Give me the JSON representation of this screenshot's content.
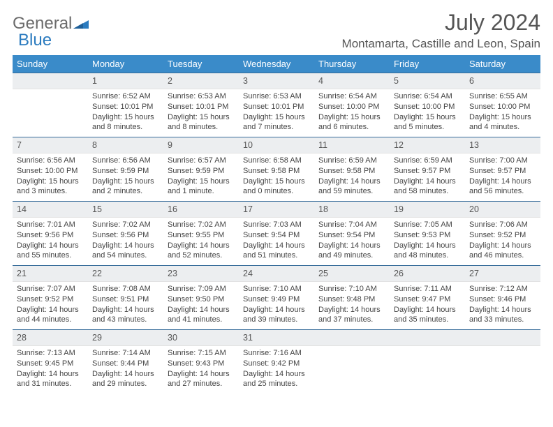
{
  "logo": {
    "text1": "General",
    "text2": "Blue"
  },
  "title": "July 2024",
  "location": "Montamarta, Castille and Leon, Spain",
  "weekdays": [
    "Sunday",
    "Monday",
    "Tuesday",
    "Wednesday",
    "Thursday",
    "Friday",
    "Saturday"
  ],
  "colors": {
    "header_bg": "#3a8bc9",
    "header_border": "#356b99",
    "daynum_bg": "#eceef0",
    "logo_gray": "#6b6b6b",
    "logo_blue": "#2b7bbf"
  },
  "typography": {
    "title_fontsize": 32,
    "location_fontsize": 17,
    "weekday_fontsize": 13,
    "cell_fontsize": 11
  },
  "first_weekday_index": 1,
  "days": [
    {
      "n": 1,
      "sunrise": "6:52 AM",
      "sunset": "10:01 PM",
      "daylight": "15 hours and 8 minutes."
    },
    {
      "n": 2,
      "sunrise": "6:53 AM",
      "sunset": "10:01 PM",
      "daylight": "15 hours and 8 minutes."
    },
    {
      "n": 3,
      "sunrise": "6:53 AM",
      "sunset": "10:01 PM",
      "daylight": "15 hours and 7 minutes."
    },
    {
      "n": 4,
      "sunrise": "6:54 AM",
      "sunset": "10:00 PM",
      "daylight": "15 hours and 6 minutes."
    },
    {
      "n": 5,
      "sunrise": "6:54 AM",
      "sunset": "10:00 PM",
      "daylight": "15 hours and 5 minutes."
    },
    {
      "n": 6,
      "sunrise": "6:55 AM",
      "sunset": "10:00 PM",
      "daylight": "15 hours and 4 minutes."
    },
    {
      "n": 7,
      "sunrise": "6:56 AM",
      "sunset": "10:00 PM",
      "daylight": "15 hours and 3 minutes."
    },
    {
      "n": 8,
      "sunrise": "6:56 AM",
      "sunset": "9:59 PM",
      "daylight": "15 hours and 2 minutes."
    },
    {
      "n": 9,
      "sunrise": "6:57 AM",
      "sunset": "9:59 PM",
      "daylight": "15 hours and 1 minute."
    },
    {
      "n": 10,
      "sunrise": "6:58 AM",
      "sunset": "9:58 PM",
      "daylight": "15 hours and 0 minutes."
    },
    {
      "n": 11,
      "sunrise": "6:59 AM",
      "sunset": "9:58 PM",
      "daylight": "14 hours and 59 minutes."
    },
    {
      "n": 12,
      "sunrise": "6:59 AM",
      "sunset": "9:57 PM",
      "daylight": "14 hours and 58 minutes."
    },
    {
      "n": 13,
      "sunrise": "7:00 AM",
      "sunset": "9:57 PM",
      "daylight": "14 hours and 56 minutes."
    },
    {
      "n": 14,
      "sunrise": "7:01 AM",
      "sunset": "9:56 PM",
      "daylight": "14 hours and 55 minutes."
    },
    {
      "n": 15,
      "sunrise": "7:02 AM",
      "sunset": "9:56 PM",
      "daylight": "14 hours and 54 minutes."
    },
    {
      "n": 16,
      "sunrise": "7:02 AM",
      "sunset": "9:55 PM",
      "daylight": "14 hours and 52 minutes."
    },
    {
      "n": 17,
      "sunrise": "7:03 AM",
      "sunset": "9:54 PM",
      "daylight": "14 hours and 51 minutes."
    },
    {
      "n": 18,
      "sunrise": "7:04 AM",
      "sunset": "9:54 PM",
      "daylight": "14 hours and 49 minutes."
    },
    {
      "n": 19,
      "sunrise": "7:05 AM",
      "sunset": "9:53 PM",
      "daylight": "14 hours and 48 minutes."
    },
    {
      "n": 20,
      "sunrise": "7:06 AM",
      "sunset": "9:52 PM",
      "daylight": "14 hours and 46 minutes."
    },
    {
      "n": 21,
      "sunrise": "7:07 AM",
      "sunset": "9:52 PM",
      "daylight": "14 hours and 44 minutes."
    },
    {
      "n": 22,
      "sunrise": "7:08 AM",
      "sunset": "9:51 PM",
      "daylight": "14 hours and 43 minutes."
    },
    {
      "n": 23,
      "sunrise": "7:09 AM",
      "sunset": "9:50 PM",
      "daylight": "14 hours and 41 minutes."
    },
    {
      "n": 24,
      "sunrise": "7:10 AM",
      "sunset": "9:49 PM",
      "daylight": "14 hours and 39 minutes."
    },
    {
      "n": 25,
      "sunrise": "7:10 AM",
      "sunset": "9:48 PM",
      "daylight": "14 hours and 37 minutes."
    },
    {
      "n": 26,
      "sunrise": "7:11 AM",
      "sunset": "9:47 PM",
      "daylight": "14 hours and 35 minutes."
    },
    {
      "n": 27,
      "sunrise": "7:12 AM",
      "sunset": "9:46 PM",
      "daylight": "14 hours and 33 minutes."
    },
    {
      "n": 28,
      "sunrise": "7:13 AM",
      "sunset": "9:45 PM",
      "daylight": "14 hours and 31 minutes."
    },
    {
      "n": 29,
      "sunrise": "7:14 AM",
      "sunset": "9:44 PM",
      "daylight": "14 hours and 29 minutes."
    },
    {
      "n": 30,
      "sunrise": "7:15 AM",
      "sunset": "9:43 PM",
      "daylight": "14 hours and 27 minutes."
    },
    {
      "n": 31,
      "sunrise": "7:16 AM",
      "sunset": "9:42 PM",
      "daylight": "14 hours and 25 minutes."
    }
  ],
  "labels": {
    "sunrise": "Sunrise:",
    "sunset": "Sunset:",
    "daylight": "Daylight:"
  }
}
